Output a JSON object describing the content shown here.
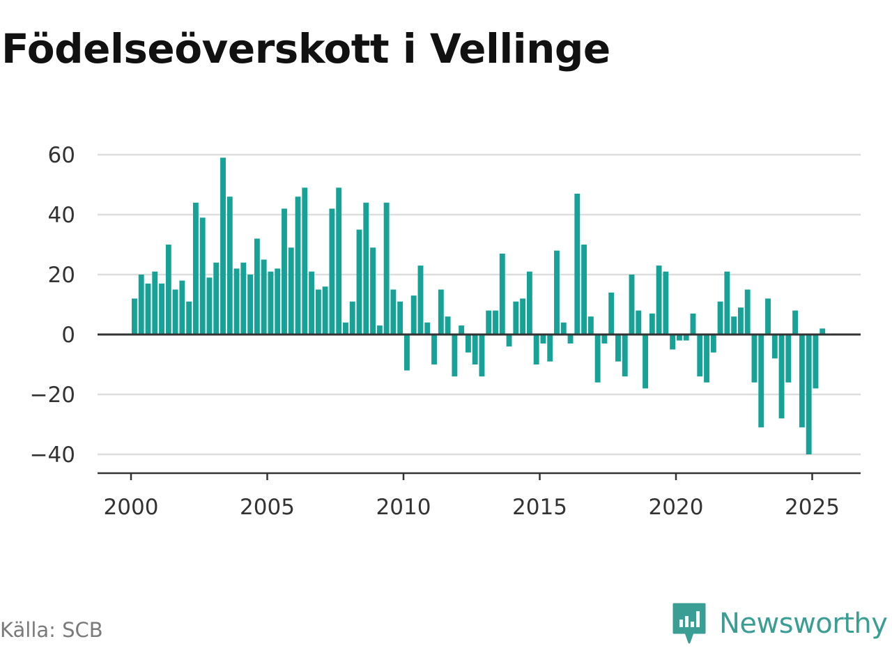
{
  "title": "Födelseöverskott i Vellinge",
  "source": "Källa: SCB",
  "brand": {
    "name": "Newsworthy",
    "color": "#3a9e95",
    "icon": "newsworthy-logo-icon"
  },
  "colors": {
    "bar": "#17a297",
    "grid": "#dddddd",
    "zero_line": "#333333",
    "axis": "#333333"
  },
  "chart_data": {
    "type": "bar",
    "title": "Födelseöverskott i Vellinge",
    "xlabel": "",
    "ylabel": "",
    "ylim": [
      -45,
      63
    ],
    "xlim": [
      2000,
      2026.25
    ],
    "y_ticks": [
      60,
      40,
      20,
      0,
      -20,
      -40
    ],
    "y_tick_labels": [
      "60",
      "40",
      "20",
      "0",
      "−20",
      "−40"
    ],
    "x_ticks": [
      2000,
      2005,
      2010,
      2015,
      2020,
      2025
    ],
    "x_tick_labels": [
      "2000",
      "2005",
      "2010",
      "2015",
      "2020",
      "2025"
    ],
    "grid": true,
    "frequency": "monthly (every quarter-step shown, period ≈ 0.25 year)",
    "start": 2000.0,
    "step": 0.25,
    "values": [
      12,
      20,
      17,
      21,
      17,
      30,
      15,
      18,
      11,
      44,
      39,
      19,
      24,
      59,
      46,
      22,
      24,
      20,
      32,
      25,
      21,
      22,
      42,
      29,
      46,
      49,
      21,
      15,
      16,
      42,
      49,
      4,
      11,
      35,
      44,
      29,
      3,
      44,
      15,
      11,
      -12,
      13,
      23,
      4,
      -10,
      15,
      6,
      -14,
      3,
      -6,
      -10,
      -14,
      8,
      8,
      27,
      -4,
      11,
      12,
      21,
      -10,
      -3,
      -9,
      28,
      4,
      -3,
      47,
      30,
      6,
      -16,
      -3,
      14,
      -9,
      -14,
      20,
      8,
      -18,
      7,
      23,
      21,
      -5,
      -2,
      -2,
      7,
      -14,
      -16,
      -6,
      11,
      21,
      6,
      9,
      15,
      -16,
      -31,
      12,
      -8,
      -28,
      -16,
      8,
      -31,
      -40,
      -18,
      2
    ]
  }
}
